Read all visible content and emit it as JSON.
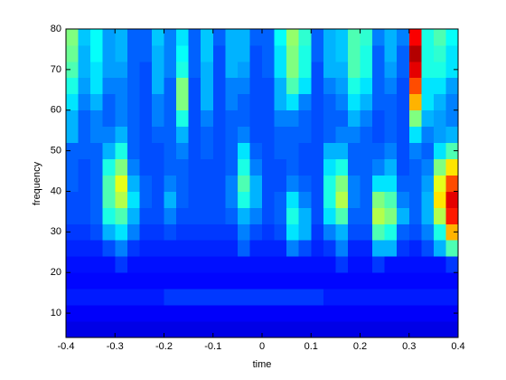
{
  "chart_data": {
    "type": "heatmap",
    "xlabel": "time",
    "ylabel": "frequency",
    "colormap": "jet",
    "clim": [
      0,
      1
    ],
    "xlim": [
      -0.4,
      0.4
    ],
    "ylim": [
      4,
      80
    ],
    "xticks": [
      -0.4,
      -0.3,
      -0.2,
      -0.1,
      0,
      0.1,
      0.2,
      0.3,
      0.4
    ],
    "yticks": [
      10,
      20,
      30,
      40,
      50,
      60,
      70,
      80
    ],
    "x": [
      -0.3875,
      -0.3625,
      -0.3375,
      -0.3125,
      -0.2875,
      -0.2625,
      -0.2375,
      -0.2125,
      -0.1875,
      -0.1625,
      -0.1375,
      -0.1125,
      -0.0875,
      -0.0625,
      -0.0375,
      -0.0125,
      0.0125,
      0.0375,
      0.0625,
      0.0875,
      0.1125,
      0.1375,
      0.1625,
      0.1875,
      0.2125,
      0.2375,
      0.2625,
      0.2875,
      0.3125,
      0.3375,
      0.3625,
      0.3875
    ],
    "y": [
      6,
      10,
      14,
      18,
      22,
      26,
      30,
      34,
      38,
      42,
      46,
      50,
      54,
      58,
      62,
      66,
      70,
      74,
      78
    ],
    "values": [
      [
        0.1,
        0.1,
        0.1,
        0.1,
        0.1,
        0.1,
        0.1,
        0.1,
        0.1,
        0.1,
        0.1,
        0.1,
        0.1,
        0.1,
        0.1,
        0.1,
        0.1,
        0.1,
        0.1,
        0.1,
        0.1,
        0.1,
        0.1,
        0.1,
        0.1,
        0.1,
        0.1,
        0.1,
        0.1,
        0.1,
        0.1,
        0.1
      ],
      [
        0.12,
        0.12,
        0.12,
        0.12,
        0.12,
        0.12,
        0.12,
        0.12,
        0.12,
        0.12,
        0.12,
        0.12,
        0.12,
        0.12,
        0.12,
        0.12,
        0.12,
        0.12,
        0.12,
        0.12,
        0.12,
        0.12,
        0.12,
        0.12,
        0.12,
        0.12,
        0.12,
        0.12,
        0.12,
        0.12,
        0.12,
        0.12
      ],
      [
        0.15,
        0.15,
        0.15,
        0.15,
        0.15,
        0.15,
        0.15,
        0.15,
        0.18,
        0.18,
        0.18,
        0.18,
        0.18,
        0.18,
        0.18,
        0.18,
        0.18,
        0.18,
        0.18,
        0.18,
        0.18,
        0.15,
        0.15,
        0.15,
        0.15,
        0.15,
        0.15,
        0.15,
        0.15,
        0.15,
        0.15,
        0.15
      ],
      [
        0.13,
        0.13,
        0.13,
        0.13,
        0.13,
        0.13,
        0.13,
        0.13,
        0.13,
        0.13,
        0.13,
        0.13,
        0.13,
        0.13,
        0.13,
        0.13,
        0.13,
        0.13,
        0.13,
        0.13,
        0.13,
        0.13,
        0.13,
        0.13,
        0.13,
        0.13,
        0.13,
        0.13,
        0.13,
        0.13,
        0.13,
        0.13
      ],
      [
        0.14,
        0.14,
        0.14,
        0.14,
        0.18,
        0.14,
        0.14,
        0.14,
        0.14,
        0.14,
        0.14,
        0.14,
        0.14,
        0.14,
        0.14,
        0.14,
        0.14,
        0.14,
        0.14,
        0.14,
        0.14,
        0.14,
        0.18,
        0.14,
        0.14,
        0.18,
        0.14,
        0.14,
        0.14,
        0.14,
        0.14,
        0.18
      ],
      [
        0.16,
        0.16,
        0.16,
        0.2,
        0.25,
        0.18,
        0.16,
        0.16,
        0.16,
        0.16,
        0.16,
        0.16,
        0.16,
        0.16,
        0.22,
        0.16,
        0.16,
        0.16,
        0.25,
        0.2,
        0.16,
        0.18,
        0.25,
        0.16,
        0.16,
        0.3,
        0.3,
        0.18,
        0.16,
        0.2,
        0.3,
        0.45
      ],
      [
        0.18,
        0.18,
        0.2,
        0.3,
        0.35,
        0.25,
        0.18,
        0.18,
        0.2,
        0.18,
        0.18,
        0.18,
        0.18,
        0.18,
        0.25,
        0.2,
        0.18,
        0.2,
        0.35,
        0.3,
        0.18,
        0.25,
        0.3,
        0.2,
        0.2,
        0.45,
        0.4,
        0.22,
        0.2,
        0.25,
        0.4,
        0.7
      ],
      [
        0.2,
        0.2,
        0.22,
        0.4,
        0.45,
        0.3,
        0.2,
        0.2,
        0.25,
        0.2,
        0.2,
        0.2,
        0.2,
        0.22,
        0.3,
        0.25,
        0.2,
        0.22,
        0.4,
        0.3,
        0.2,
        0.35,
        0.45,
        0.22,
        0.22,
        0.55,
        0.5,
        0.3,
        0.22,
        0.3,
        0.55,
        0.85
      ],
      [
        0.2,
        0.2,
        0.22,
        0.45,
        0.55,
        0.35,
        0.22,
        0.2,
        0.3,
        0.22,
        0.2,
        0.2,
        0.2,
        0.25,
        0.4,
        0.3,
        0.2,
        0.22,
        0.35,
        0.25,
        0.2,
        0.4,
        0.55,
        0.25,
        0.22,
        0.5,
        0.45,
        0.25,
        0.22,
        0.3,
        0.65,
        0.9
      ],
      [
        0.22,
        0.2,
        0.22,
        0.45,
        0.6,
        0.3,
        0.22,
        0.2,
        0.25,
        0.22,
        0.2,
        0.2,
        0.2,
        0.25,
        0.45,
        0.3,
        0.2,
        0.2,
        0.25,
        0.22,
        0.2,
        0.4,
        0.5,
        0.25,
        0.22,
        0.35,
        0.35,
        0.22,
        0.22,
        0.28,
        0.6,
        0.8
      ],
      [
        0.22,
        0.2,
        0.22,
        0.4,
        0.5,
        0.25,
        0.2,
        0.2,
        0.22,
        0.22,
        0.2,
        0.2,
        0.2,
        0.22,
        0.4,
        0.25,
        0.2,
        0.2,
        0.22,
        0.2,
        0.2,
        0.35,
        0.4,
        0.22,
        0.22,
        0.25,
        0.3,
        0.2,
        0.22,
        0.25,
        0.5,
        0.65
      ],
      [
        0.22,
        0.22,
        0.22,
        0.3,
        0.4,
        0.22,
        0.2,
        0.2,
        0.22,
        0.25,
        0.2,
        0.22,
        0.2,
        0.22,
        0.35,
        0.22,
        0.2,
        0.22,
        0.22,
        0.2,
        0.2,
        0.3,
        0.3,
        0.22,
        0.22,
        0.22,
        0.25,
        0.2,
        0.25,
        0.22,
        0.35,
        0.45
      ],
      [
        0.3,
        0.22,
        0.25,
        0.25,
        0.3,
        0.22,
        0.2,
        0.22,
        0.22,
        0.3,
        0.2,
        0.22,
        0.2,
        0.22,
        0.25,
        0.2,
        0.2,
        0.22,
        0.22,
        0.22,
        0.2,
        0.22,
        0.25,
        0.25,
        0.22,
        0.2,
        0.22,
        0.2,
        0.35,
        0.25,
        0.28,
        0.3
      ],
      [
        0.3,
        0.22,
        0.25,
        0.22,
        0.25,
        0.22,
        0.2,
        0.25,
        0.22,
        0.4,
        0.2,
        0.25,
        0.2,
        0.22,
        0.22,
        0.2,
        0.2,
        0.25,
        0.25,
        0.22,
        0.2,
        0.22,
        0.22,
        0.3,
        0.25,
        0.2,
        0.22,
        0.2,
        0.5,
        0.3,
        0.28,
        0.25
      ],
      [
        0.35,
        0.25,
        0.3,
        0.22,
        0.25,
        0.22,
        0.2,
        0.25,
        0.22,
        0.5,
        0.2,
        0.3,
        0.2,
        0.25,
        0.22,
        0.2,
        0.2,
        0.3,
        0.35,
        0.25,
        0.2,
        0.22,
        0.25,
        0.35,
        0.3,
        0.22,
        0.22,
        0.2,
        0.7,
        0.35,
        0.3,
        0.25
      ],
      [
        0.4,
        0.28,
        0.35,
        0.25,
        0.25,
        0.22,
        0.2,
        0.3,
        0.22,
        0.5,
        0.2,
        0.3,
        0.2,
        0.25,
        0.25,
        0.2,
        0.2,
        0.3,
        0.45,
        0.35,
        0.2,
        0.25,
        0.28,
        0.4,
        0.35,
        0.22,
        0.25,
        0.2,
        0.8,
        0.35,
        0.35,
        0.28
      ],
      [
        0.45,
        0.3,
        0.35,
        0.28,
        0.28,
        0.22,
        0.2,
        0.3,
        0.25,
        0.4,
        0.22,
        0.3,
        0.2,
        0.3,
        0.28,
        0.2,
        0.22,
        0.35,
        0.5,
        0.4,
        0.2,
        0.3,
        0.3,
        0.45,
        0.4,
        0.22,
        0.28,
        0.22,
        0.9,
        0.4,
        0.4,
        0.35
      ],
      [
        0.48,
        0.3,
        0.38,
        0.28,
        0.3,
        0.22,
        0.22,
        0.3,
        0.25,
        0.38,
        0.22,
        0.32,
        0.2,
        0.3,
        0.3,
        0.2,
        0.22,
        0.35,
        0.5,
        0.4,
        0.22,
        0.3,
        0.32,
        0.45,
        0.4,
        0.22,
        0.3,
        0.22,
        0.95,
        0.4,
        0.42,
        0.35
      ],
      [
        0.5,
        0.32,
        0.38,
        0.28,
        0.3,
        0.22,
        0.22,
        0.32,
        0.25,
        0.35,
        0.22,
        0.32,
        0.22,
        0.3,
        0.3,
        0.22,
        0.22,
        0.38,
        0.52,
        0.42,
        0.22,
        0.3,
        0.32,
        0.45,
        0.42,
        0.25,
        0.3,
        0.25,
        0.88,
        0.4,
        0.45,
        0.38
      ]
    ]
  }
}
